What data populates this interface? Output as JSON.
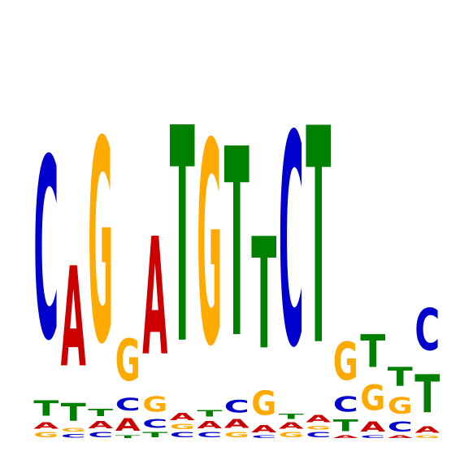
{
  "chart_data": {
    "type": "sequence-logo",
    "title": "",
    "xlabel": "",
    "ylabel": "",
    "ylim": [
      0,
      2
    ],
    "grid": false,
    "alphabet": [
      "A",
      "C",
      "G",
      "T"
    ],
    "colors": {
      "A": "#cc0000",
      "C": "#0000cc",
      "G": "#ffaa00",
      "T": "#008000"
    },
    "positions": [
      [
        {
          "base": "G",
          "bits": 0.04
        },
        {
          "base": "A",
          "bits": 0.05
        },
        {
          "base": "T",
          "bits": 0.12
        },
        {
          "base": "C",
          "bits": 1.43
        }
      ],
      [
        {
          "base": "C",
          "bits": 0.03
        },
        {
          "base": "G",
          "bits": 0.03
        },
        {
          "base": "T",
          "bits": 0.14
        },
        {
          "base": "A",
          "bits": 0.79
        }
      ],
      [
        {
          "base": "C",
          "bits": 0.04
        },
        {
          "base": "A",
          "bits": 0.06
        },
        {
          "base": "T",
          "bits": 0.06
        },
        {
          "base": "G",
          "bits": 1.6
        }
      ],
      [
        {
          "base": "T",
          "bits": 0.02
        },
        {
          "base": "A",
          "bits": 0.1
        },
        {
          "base": "C",
          "bits": 0.1
        },
        {
          "base": "G",
          "bits": 0.33
        }
      ],
      [
        {
          "base": "T",
          "bits": 0.04
        },
        {
          "base": "C",
          "bits": 0.07
        },
        {
          "base": "G",
          "bits": 0.12
        },
        {
          "base": "A",
          "bits": 0.93
        }
      ],
      [
        {
          "base": "C",
          "bits": 0.04
        },
        {
          "base": "G",
          "bits": 0.04
        },
        {
          "base": "A",
          "bits": 0.06
        },
        {
          "base": "T",
          "bits": 1.7
        }
      ],
      [
        {
          "base": "C",
          "bits": 0.04
        },
        {
          "base": "A",
          "bits": 0.06
        },
        {
          "base": "T",
          "bits": 0.05
        },
        {
          "base": "G",
          "bits": 1.6
        }
      ],
      [
        {
          "base": "G",
          "bits": 0.04
        },
        {
          "base": "A",
          "bits": 0.07
        },
        {
          "base": "C",
          "bits": 0.1
        },
        {
          "base": "T",
          "bits": 1.49
        }
      ],
      [
        {
          "base": "C",
          "bits": 0.02
        },
        {
          "base": "A",
          "bits": 0.06
        },
        {
          "base": "G",
          "bits": 0.19
        },
        {
          "base": "T",
          "bits": 0.88
        }
      ],
      [
        {
          "base": "G",
          "bits": 0.04
        },
        {
          "base": "A",
          "bits": 0.05
        },
        {
          "base": "T",
          "bits": 0.04
        },
        {
          "base": "C",
          "bits": 1.67
        }
      ],
      [
        {
          "base": "C",
          "bits": 0.04
        },
        {
          "base": "G",
          "bits": 0.03
        },
        {
          "base": "A",
          "bits": 0.06
        },
        {
          "base": "T",
          "bits": 1.71
        }
      ],
      [
        {
          "base": "A",
          "bits": 0.02
        },
        {
          "base": "T",
          "bits": 0.09
        },
        {
          "base": "C",
          "bits": 0.12
        },
        {
          "base": "G",
          "bits": 0.3
        }
      ],
      [
        {
          "base": "C",
          "bits": 0.02
        },
        {
          "base": "A",
          "bits": 0.08
        },
        {
          "base": "G",
          "bits": 0.2
        },
        {
          "base": "T",
          "bits": 0.26
        }
      ],
      [
        {
          "base": "A",
          "bits": 0.02
        },
        {
          "base": "C",
          "bits": 0.08
        },
        {
          "base": "G",
          "bits": 0.13
        },
        {
          "base": "T",
          "bits": 0.15
        }
      ],
      [
        {
          "base": "G",
          "bits": 0.02
        },
        {
          "base": "A",
          "bits": 0.05
        },
        {
          "base": "T",
          "bits": 0.3
        },
        {
          "base": "C",
          "bits": 0.33
        }
      ]
    ]
  }
}
